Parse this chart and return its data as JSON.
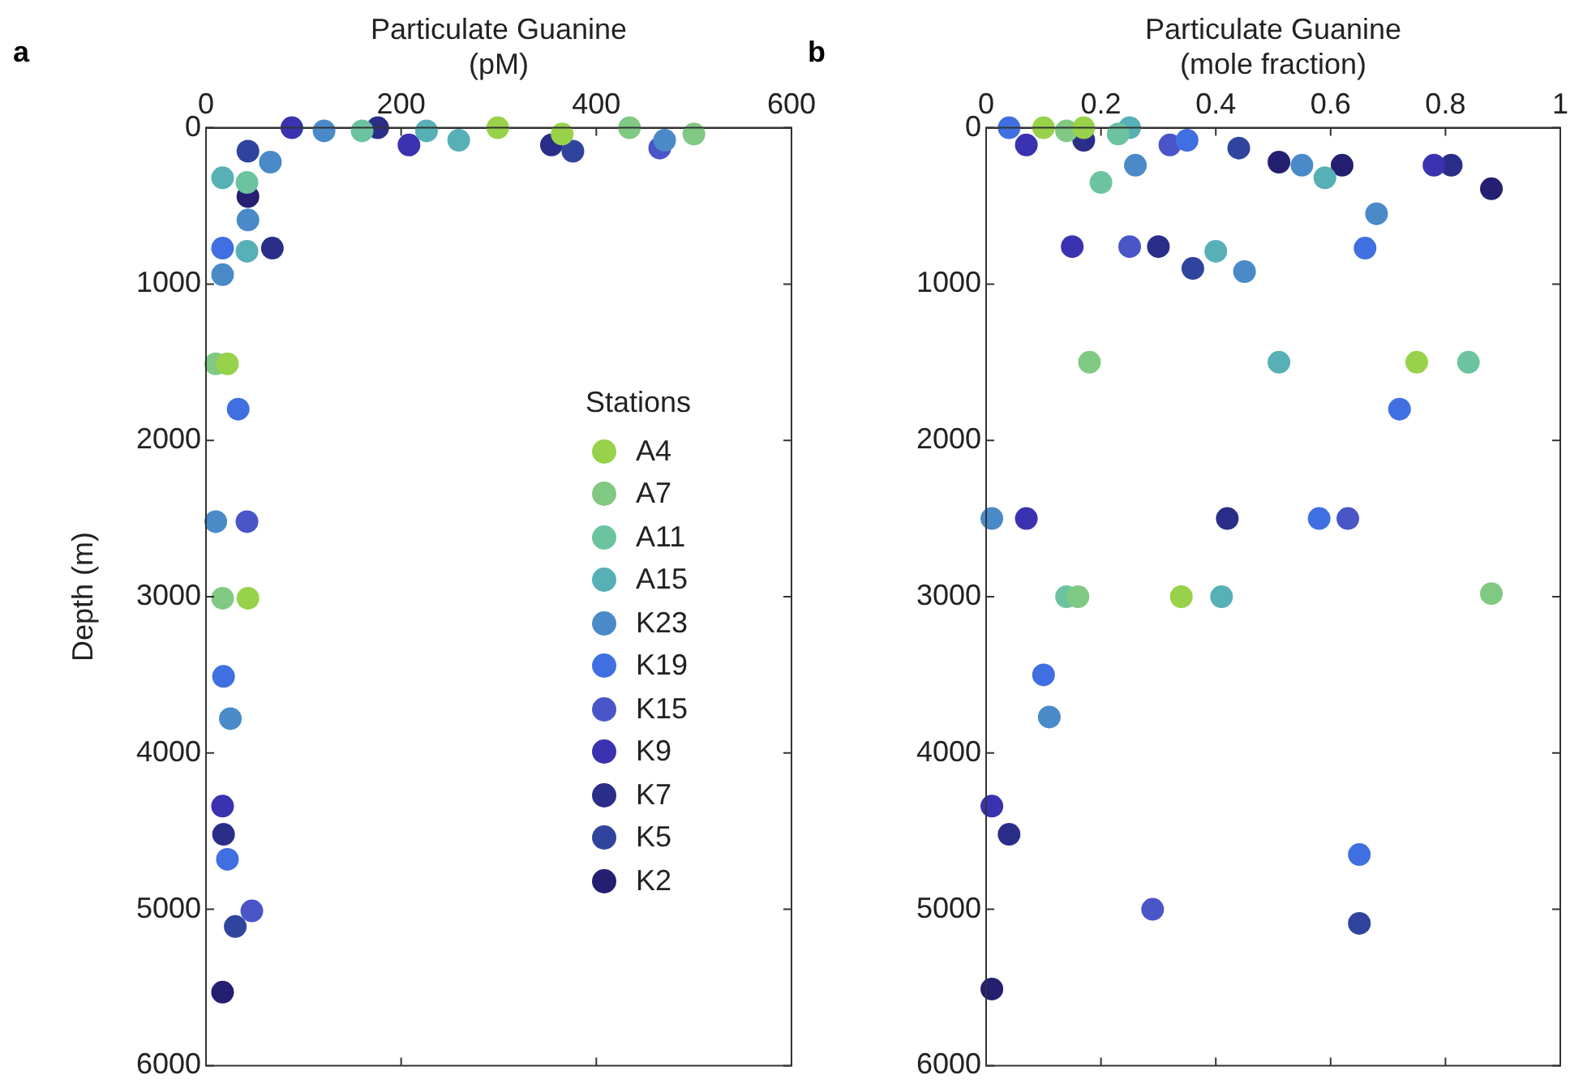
{
  "chart_data": [
    {
      "type": "scatter",
      "xlabel": "Particulate Guanine\n(pM)",
      "ylabel": "Depth (m)",
      "legend_title": "Stations",
      "legend": "right",
      "grid": false,
      "marker": "circle",
      "annotations": [
        "a"
      ],
      "xlim": [
        0,
        600
      ],
      "xticks": [
        0,
        200,
        400,
        600
      ],
      "ylim": [
        6000,
        0
      ],
      "yticks": [
        0,
        1000,
        2000,
        3000,
        4000,
        5000,
        6000
      ],
      "series": [
        {
          "name": "A4",
          "color": "#97d24a",
          "x": [
            299,
            365,
            43,
            22
          ],
          "values": [
            0,
            40,
            3010,
            1510
          ]
        },
        {
          "name": "A7",
          "color": "#80c983",
          "x": [
            434,
            500,
            10,
            17
          ],
          "values": [
            0,
            40,
            1510,
            3010
          ]
        },
        {
          "name": "A11",
          "color": "#6cc3a0",
          "x": [
            160,
            42
          ],
          "values": [
            20,
            350
          ]
        },
        {
          "name": "A15",
          "color": "#56b0b5",
          "x": [
            226,
            259,
            17,
            42
          ],
          "values": [
            20,
            80,
            320,
            790
          ]
        },
        {
          "name": "K23",
          "color": "#4a8ac8",
          "x": [
            121,
            66,
            43,
            17,
            470,
            10,
            25
          ],
          "values": [
            20,
            220,
            590,
            940,
            80,
            2520,
            3780
          ]
        },
        {
          "name": "K19",
          "color": "#3f6fe0",
          "x": [
            17,
            33,
            18,
            22
          ],
          "values": [
            770,
            1800,
            3510,
            4680
          ]
        },
        {
          "name": "K15",
          "color": "#4a55c8",
          "x": [
            465,
            42,
            47
          ],
          "values": [
            130,
            2520,
            5010
          ]
        },
        {
          "name": "K9",
          "color": "#3a32b0",
          "x": [
            88,
            208,
            17
          ],
          "values": [
            0,
            110,
            4340
          ]
        },
        {
          "name": "K7",
          "color": "#2a2e88",
          "x": [
            176,
            354,
            68,
            18
          ],
          "values": [
            0,
            110,
            770,
            4520
          ]
        },
        {
          "name": "K5",
          "color": "#30449e",
          "x": [
            376,
            43,
            30
          ],
          "values": [
            150,
            150,
            5110
          ]
        },
        {
          "name": "K2",
          "color": "#241f70",
          "x": [
            43,
            17
          ],
          "values": [
            440,
            5530
          ]
        }
      ]
    },
    {
      "type": "scatter",
      "xlabel": "Particulate Guanine\n(mole fraction)",
      "grid": false,
      "marker": "circle",
      "annotations": [
        "b"
      ],
      "xlim": [
        0,
        1
      ],
      "xticks": [
        0,
        0.2,
        0.4,
        0.6,
        0.8,
        1
      ],
      "ylim": [
        6000,
        0
      ],
      "yticks": [
        0,
        1000,
        2000,
        3000,
        4000,
        5000,
        6000
      ],
      "series": [
        {
          "color": "#97d24a",
          "x": [
            0.1,
            0.17,
            0.75,
            0.34
          ],
          "values": [
            0,
            0,
            1500,
            3000
          ]
        },
        {
          "color": "#80c983",
          "x": [
            0.14,
            0.18,
            0.16,
            0.88
          ],
          "values": [
            20,
            1500,
            3000,
            2980
          ]
        },
        {
          "color": "#6cc3a0",
          "x": [
            0.23,
            0.2,
            0.84,
            0.14
          ],
          "values": [
            40,
            350,
            1500,
            3000
          ]
        },
        {
          "color": "#56b0b5",
          "x": [
            0.25,
            0.59,
            0.4,
            0.51,
            0.41
          ],
          "values": [
            0,
            320,
            790,
            1500,
            3000
          ]
        },
        {
          "color": "#4a8ac8",
          "x": [
            0.26,
            0.55,
            0.68,
            0.45,
            0.01,
            0.11
          ],
          "values": [
            240,
            240,
            550,
            920,
            2500,
            3770
          ]
        },
        {
          "color": "#3f6fe0",
          "x": [
            0.04,
            0.35,
            0.66,
            0.72,
            0.58,
            0.1,
            0.65
          ],
          "values": [
            0,
            80,
            770,
            1800,
            2500,
            3500,
            4650
          ]
        },
        {
          "color": "#4a55c8",
          "x": [
            0.32,
            0.25,
            0.63,
            0.29
          ],
          "values": [
            110,
            760,
            2500,
            5000
          ]
        },
        {
          "color": "#3a32b0",
          "x": [
            0.07,
            0.15,
            0.78,
            0.07,
            0.01
          ],
          "values": [
            110,
            760,
            240,
            2500,
            4340
          ]
        },
        {
          "color": "#2a2e88",
          "x": [
            0.17,
            0.81,
            0.3,
            0.42,
            0.04
          ],
          "values": [
            80,
            240,
            760,
            2500,
            4520
          ]
        },
        {
          "color": "#30449e",
          "x": [
            0.44,
            0.36,
            0.65
          ],
          "values": [
            130,
            900,
            5090
          ]
        },
        {
          "color": "#241f70",
          "x": [
            0.51,
            0.62,
            0.88,
            0.01
          ],
          "values": [
            220,
            240,
            390,
            5510
          ]
        }
      ]
    }
  ]
}
